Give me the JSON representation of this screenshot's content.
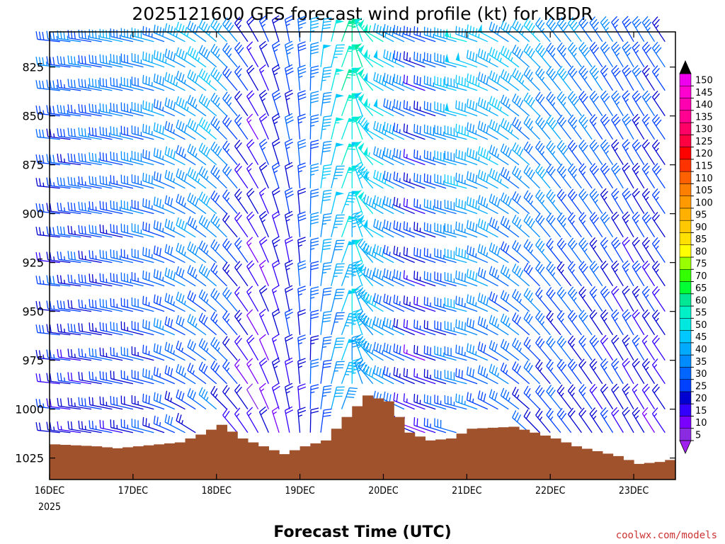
{
  "chart_data": {
    "type": "wind-profile",
    "title": "2025121600 GFS forecast wind profile (kt) for KBDR",
    "xlabel": "Forecast Time (UTC)",
    "credit": "coolwx.com/models",
    "x_ticks": [
      "16DEC",
      "17DEC",
      "18DEC",
      "19DEC",
      "20DEC",
      "21DEC",
      "22DEC",
      "23DEC"
    ],
    "x_start_year": "2025",
    "x_range_hours": [
      0,
      180
    ],
    "y_ticks": [
      "825",
      "850",
      "875",
      "900",
      "925",
      "950",
      "975",
      "1000",
      "1025"
    ],
    "y_range_hpa": [
      807,
      1036
    ],
    "colorbar": {
      "values": [
        5,
        10,
        15,
        20,
        25,
        30,
        35,
        40,
        45,
        50,
        55,
        60,
        65,
        70,
        75,
        80,
        85,
        90,
        95,
        100,
        105,
        110,
        115,
        120,
        125,
        130,
        135,
        140,
        145,
        150
      ],
      "colors": [
        "#8a2be2",
        "#7a00ff",
        "#3300ff",
        "#0000d0",
        "#0040ff",
        "#0066ff",
        "#008cff",
        "#00aaff",
        "#00c8ff",
        "#00e8e0",
        "#00f0c8",
        "#00e896",
        "#00ff33",
        "#33ff00",
        "#99ff00",
        "#ffff00",
        "#ffe000",
        "#ffc800",
        "#ffb000",
        "#ff9900",
        "#ff8000",
        "#ff6000",
        "#ff3300",
        "#ff0000",
        "#ff0040",
        "#ff0066",
        "#ff0090",
        "#ff00b0",
        "#ff00d0",
        "#ee00ee"
      ],
      "arrow_colors": [
        "#a020f0",
        "#000000"
      ]
    },
    "pressure_levels": [
      812,
      825,
      837,
      850,
      862,
      875,
      887,
      900,
      912,
      925,
      937,
      950,
      962,
      975,
      987,
      1000,
      1012
    ],
    "time_steps_hours": 3,
    "wind_field": [
      {
        "t_hours": 0,
        "dir_deg": 275,
        "speed_kt": 30
      },
      {
        "t_hours": 30,
        "dir_deg": 285,
        "speed_kt": 38
      },
      {
        "t_hours": 48,
        "dir_deg": 310,
        "speed_kt": 45
      },
      {
        "t_hours": 60,
        "dir_deg": 330,
        "speed_kt": 20
      },
      {
        "t_hours": 72,
        "dir_deg": 355,
        "speed_kt": 32
      },
      {
        "t_hours": 84,
        "dir_deg": 20,
        "speed_kt": 60
      },
      {
        "t_hours": 96,
        "dir_deg": 300,
        "speed_kt": 55
      },
      {
        "t_hours": 108,
        "dir_deg": 290,
        "speed_kt": 25
      },
      {
        "t_hours": 120,
        "dir_deg": 285,
        "speed_kt": 48
      },
      {
        "t_hours": 144,
        "dir_deg": 320,
        "speed_kt": 40
      },
      {
        "t_hours": 168,
        "dir_deg": 330,
        "speed_kt": 30
      },
      {
        "t_hours": 180,
        "dir_deg": 325,
        "speed_kt": 28
      }
    ],
    "surface_pressure": [
      {
        "t_hours": 0,
        "hpa": 1018
      },
      {
        "t_hours": 12,
        "hpa": 1019
      },
      {
        "t_hours": 18,
        "hpa": 1020
      },
      {
        "t_hours": 24,
        "hpa": 1019
      },
      {
        "t_hours": 36,
        "hpa": 1017
      },
      {
        "t_hours": 42,
        "hpa": 1013
      },
      {
        "t_hours": 48,
        "hpa": 1008
      },
      {
        "t_hours": 54,
        "hpa": 1015
      },
      {
        "t_hours": 60,
        "hpa": 1019
      },
      {
        "t_hours": 66,
        "hpa": 1023
      },
      {
        "t_hours": 72,
        "hpa": 1019
      },
      {
        "t_hours": 78,
        "hpa": 1016
      },
      {
        "t_hours": 84,
        "hpa": 1004
      },
      {
        "t_hours": 90,
        "hpa": 993
      },
      {
        "t_hours": 96,
        "hpa": 996
      },
      {
        "t_hours": 102,
        "hpa": 1012
      },
      {
        "t_hours": 108,
        "hpa": 1016
      },
      {
        "t_hours": 114,
        "hpa": 1015
      },
      {
        "t_hours": 120,
        "hpa": 1010
      },
      {
        "t_hours": 132,
        "hpa": 1009
      },
      {
        "t_hours": 138,
        "hpa": 1012
      },
      {
        "t_hours": 144,
        "hpa": 1015
      },
      {
        "t_hours": 150,
        "hpa": 1019
      },
      {
        "t_hours": 162,
        "hpa": 1024
      },
      {
        "t_hours": 168,
        "hpa": 1028
      },
      {
        "t_hours": 174,
        "hpa": 1027
      },
      {
        "t_hours": 180,
        "hpa": 1025
      }
    ],
    "terrain_color": "#a0522d"
  }
}
